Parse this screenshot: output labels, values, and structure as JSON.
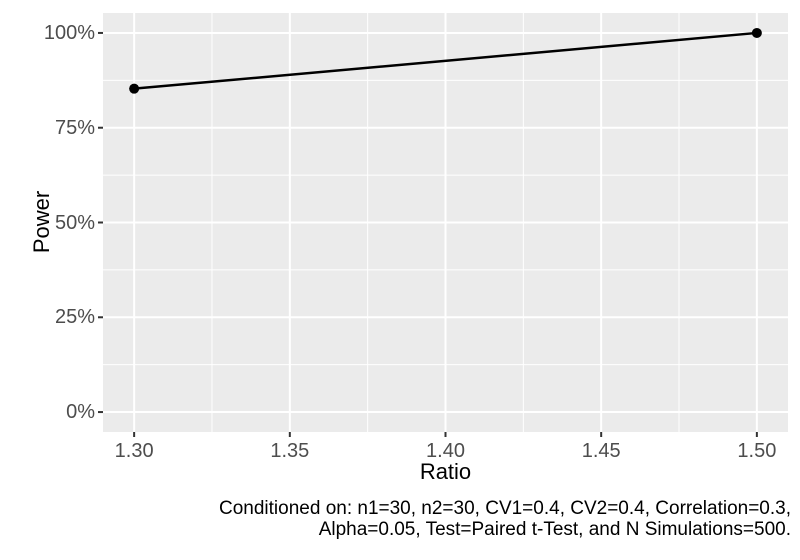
{
  "chart_data": {
    "type": "line",
    "title": "",
    "xlabel": "Ratio",
    "ylabel": "Power",
    "x": [
      1.3,
      1.5
    ],
    "series": [
      {
        "name": "Power",
        "values": [
          85.3,
          100
        ]
      }
    ],
    "xlim": [
      1.29,
      1.51
    ],
    "ylim": [
      -5.26,
      105.26
    ],
    "x_ticks": {
      "major": [
        1.3,
        1.35,
        1.4,
        1.45,
        1.5
      ],
      "labels": [
        "1.30",
        "1.35",
        "1.40",
        "1.45",
        "1.50"
      ],
      "minor": [
        1.325,
        1.375,
        1.425,
        1.475
      ]
    },
    "y_ticks": {
      "major": [
        0,
        25,
        50,
        75,
        100
      ],
      "labels": [
        "0%",
        "25%",
        "50%",
        "75%",
        "100%"
      ],
      "minor": [
        12.5,
        37.5,
        62.5,
        87.5
      ]
    },
    "grid": true,
    "legend": "none",
    "marker": "point"
  },
  "caption": {
    "lines": [
      "Conditioned on: n1=30, n2=30, CV1=0.4, CV2=0.4, Correlation=0.3,",
      "Alpha=0.05, Test=Paired t-Test, and N Simulations=500."
    ]
  },
  "colors": {
    "figure_bg": "#FFFFFF",
    "panel_bg": "#EBEBEB",
    "grid": "#FFFFFF",
    "series": "#000000",
    "tick_label": "#4D4D4D",
    "tick_mark": "#333333",
    "text": "#000000"
  }
}
